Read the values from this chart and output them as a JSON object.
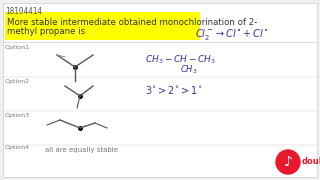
{
  "bg_color": "#f0f0f0",
  "header_id": "18104414",
  "question_text_line1": "More stable intermediate obtained monochlorination of 2-",
  "question_text_line2": "methyl propane is",
  "highlight_color": "#ffff00",
  "text_color": "#333333",
  "option1_label": "Option1",
  "option2_label": "Option2",
  "option3_label": "Option3",
  "option4_label": "Option4",
  "option4_text": "all are equally stable",
  "reaction_text": "Cl₂⁻ → Cl· + Cl·",
  "option1_formula": "CH₃ — CH — CH₃",
  "option1_sub": "CH₃",
  "option2_formula": "3° > 2° > 1°",
  "white_panel_color": "#ffffff",
  "doubtnut_red": "#e8192c",
  "panel_border": "#cccccc"
}
